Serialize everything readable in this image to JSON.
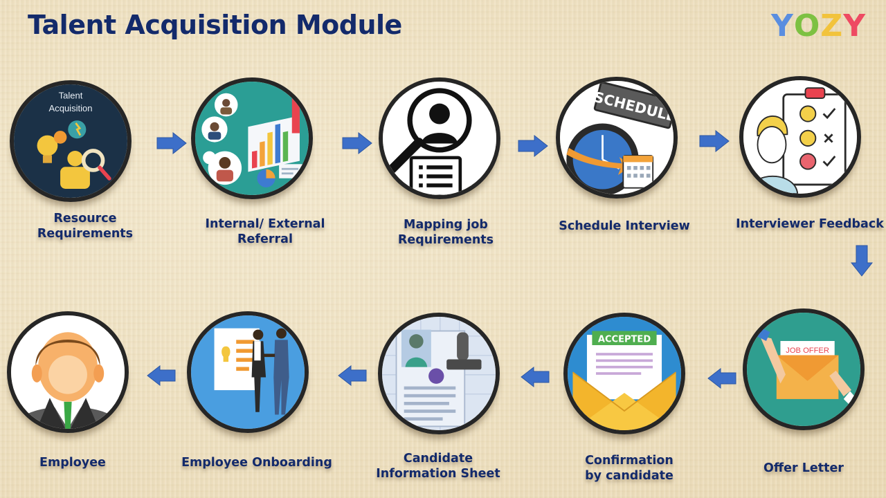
{
  "title": "Talent Acquisition Module",
  "logo": {
    "letters": [
      {
        "ch": "Y",
        "color": "#5a8ee0"
      },
      {
        "ch": "O",
        "color": "#7dc142"
      },
      {
        "ch": "Z",
        "color": "#f2c33c"
      },
      {
        "ch": "Y",
        "color": "#ee4a62"
      }
    ]
  },
  "colors": {
    "title": "#132a6b",
    "arrow": "#3d6fc9",
    "ring": "#262626"
  },
  "steps": [
    {
      "line1": "Resource",
      "line2": "Requirements",
      "icon": "talent-acquisition-icon",
      "icon_text_1": "Talent",
      "icon_text_2": "Acquisition"
    },
    {
      "line1": "Internal/ External",
      "line2": "Referral",
      "icon": "referral-network-icon"
    },
    {
      "line1": "Mapping job",
      "line2": "Requirements",
      "icon": "magnifier-profile-icon"
    },
    {
      "line1": "Schedule Interview",
      "line2": "",
      "icon": "schedule-clock-icon",
      "icon_text": "SCHEDULE"
    },
    {
      "line1": "Interviewer Feedback",
      "line2": "",
      "icon": "feedback-checklist-icon"
    },
    {
      "line1": "Offer Letter",
      "line2": "",
      "icon": "job-offer-envelope-icon",
      "icon_text": "JOB OFFER"
    },
    {
      "line1": "Confirmation",
      "line2": "by candidate",
      "icon": "accepted-envelope-icon",
      "icon_text": "ACCEPTED"
    },
    {
      "line1": "Candidate",
      "line2": "Information Sheet",
      "icon": "candidate-stamp-icon"
    },
    {
      "line1": "Employee Onboarding",
      "line2": "",
      "icon": "onboarding-handshake-icon"
    },
    {
      "line1": "Employee",
      "line2": "",
      "icon": "employee-avatar-icon"
    }
  ]
}
